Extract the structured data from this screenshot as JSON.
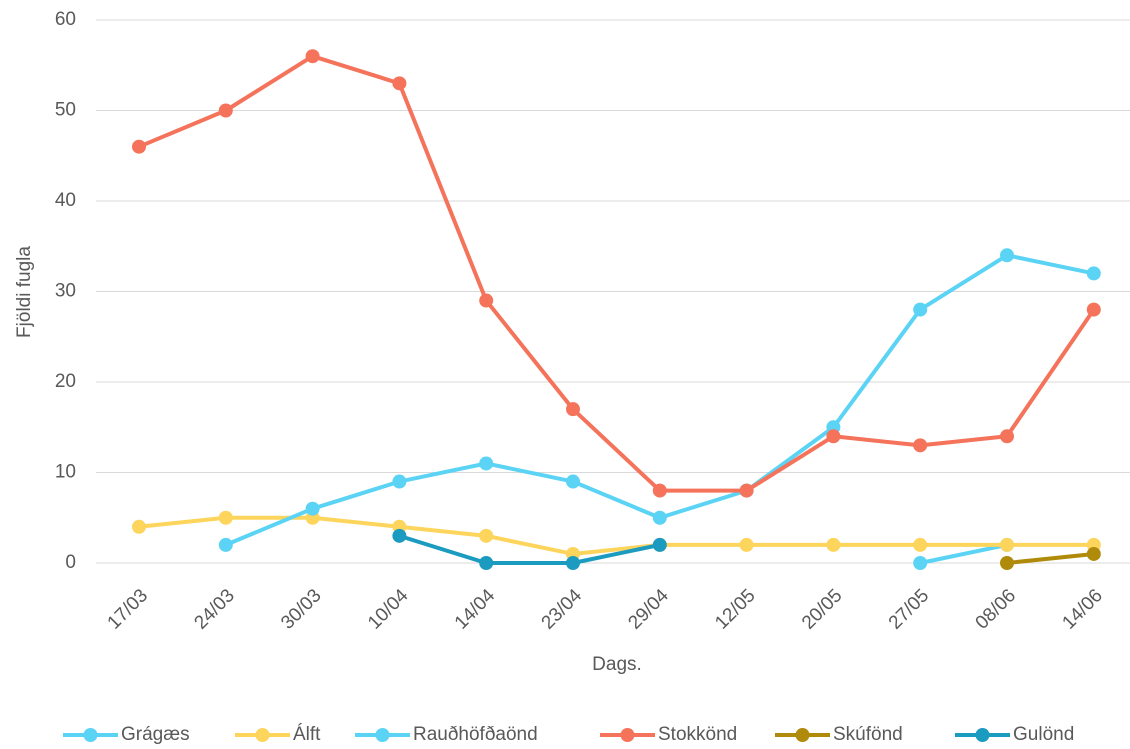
{
  "chart_data": {
    "type": "line",
    "x_label": "Dags.",
    "y_label": "Fjöldi fugla",
    "categories": [
      "17/03",
      "24/03",
      "30/03",
      "10/04",
      "14/04",
      "23/04",
      "29/04",
      "12/05",
      "20/05",
      "27/05",
      "08/06",
      "14/06"
    ],
    "series": [
      {
        "name": "Grágæs",
        "color": "#5BD3F5",
        "values": [
          null,
          null,
          null,
          null,
          null,
          null,
          null,
          null,
          null,
          0,
          2,
          null
        ]
      },
      {
        "name": "Álft",
        "color": "#FDD55C",
        "values": [
          4,
          5,
          5,
          4,
          3,
          1,
          2,
          2,
          2,
          2,
          2,
          2
        ]
      },
      {
        "name": "Rauðhöfðaönd",
        "color": "#5BD3F5",
        "values": [
          null,
          2,
          6,
          9,
          11,
          9,
          5,
          8,
          15,
          28,
          34,
          32
        ]
      },
      {
        "name": "Stokkönd",
        "color": "#F4735A",
        "values": [
          46,
          50,
          56,
          53,
          29,
          17,
          8,
          8,
          14,
          13,
          14,
          28
        ]
      },
      {
        "name": "Skúfönd",
        "color": "#B08A0A",
        "values": [
          null,
          null,
          null,
          null,
          null,
          null,
          null,
          null,
          null,
          null,
          0,
          1
        ]
      },
      {
        "name": "Gulönd",
        "color": "#1A9BBF",
        "values": [
          null,
          null,
          null,
          3,
          0,
          0,
          2,
          null,
          null,
          null,
          null,
          null
        ]
      }
    ],
    "ylim": [
      0,
      60
    ],
    "yticks": [
      0,
      10,
      20,
      30,
      40,
      50,
      60
    ],
    "grid": true,
    "legend": "bottom"
  }
}
